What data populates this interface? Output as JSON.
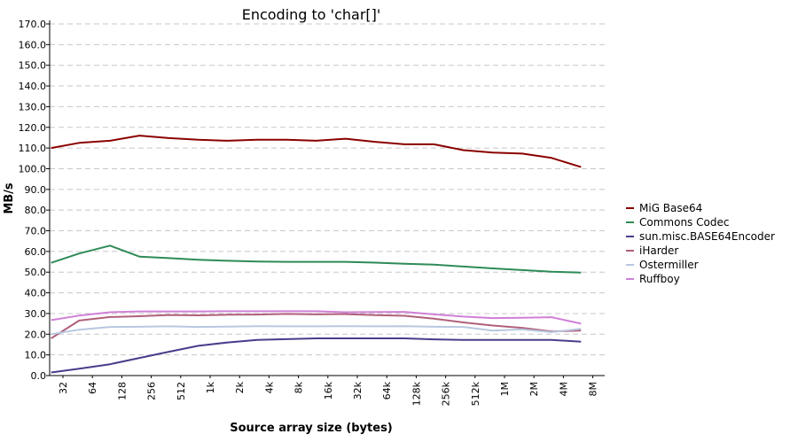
{
  "chart_data": {
    "type": "line",
    "title": "Encoding to 'char[]'",
    "xlabel": "Source array size (bytes)",
    "ylabel": "MB/s",
    "ylim": [
      0,
      170
    ],
    "y_ticks": [
      "0.0",
      "10.0",
      "20.0",
      "30.0",
      "40.0",
      "50.0",
      "60.0",
      "70.0",
      "80.0",
      "90.0",
      "100.0",
      "110.0",
      "120.0",
      "130.0",
      "140.0",
      "150.0",
      "160.0",
      "170.0"
    ],
    "grid": true,
    "legend_position": "right",
    "categories": [
      "32",
      "64",
      "128",
      "256",
      "512",
      "1k",
      "2k",
      "4k",
      "8k",
      "16k",
      "32k",
      "64k",
      "128k",
      "256k",
      "512k",
      "1M",
      "2M",
      "4M",
      "8M"
    ],
    "x_positions": [
      0,
      1,
      2,
      3,
      4,
      5,
      6,
      7,
      8,
      9,
      10,
      11,
      12,
      13,
      14,
      15,
      16,
      17,
      18
    ],
    "series": [
      {
        "name": "MiG Base64",
        "color": "#8b0000",
        "points": [
          [
            -0.4,
            110
          ],
          [
            0.55,
            112.5
          ],
          [
            1.6,
            113.5
          ],
          [
            2.6,
            116
          ],
          [
            3.6,
            114.8
          ],
          [
            4.6,
            114
          ],
          [
            5.6,
            113.5
          ],
          [
            6.6,
            114
          ],
          [
            7.6,
            114
          ],
          [
            8.6,
            113.5
          ],
          [
            9.6,
            114.5
          ],
          [
            10.6,
            113
          ],
          [
            11.6,
            111.8
          ],
          [
            12.6,
            111.8
          ],
          [
            13.6,
            109
          ],
          [
            14.6,
            107.8
          ],
          [
            15.6,
            107.3
          ],
          [
            16.6,
            105.2
          ],
          [
            17.6,
            100.8
          ]
        ]
      },
      {
        "name": "Commons Codec",
        "color": "#2e8b57",
        "points": [
          [
            -0.4,
            54.5
          ],
          [
            0.55,
            59
          ],
          [
            1.6,
            62.8
          ],
          [
            2.6,
            57.5
          ],
          [
            3.6,
            56.8
          ],
          [
            4.6,
            56
          ],
          [
            5.6,
            55.5
          ],
          [
            6.6,
            55.1
          ],
          [
            7.6,
            55
          ],
          [
            8.6,
            55
          ],
          [
            9.6,
            55
          ],
          [
            10.6,
            54.6
          ],
          [
            11.6,
            54.1
          ],
          [
            12.6,
            53.6
          ],
          [
            13.6,
            52.7
          ],
          [
            14.6,
            51.8
          ],
          [
            15.6,
            51
          ],
          [
            16.6,
            50.2
          ],
          [
            17.6,
            49.8
          ]
        ]
      },
      {
        "name": "sun.misc.BASE64Encoder",
        "color": "#483d8b",
        "points": [
          [
            -0.4,
            1.5
          ],
          [
            0.55,
            3.3
          ],
          [
            1.6,
            5.5
          ],
          [
            2.6,
            8.5
          ],
          [
            3.6,
            11.5
          ],
          [
            4.6,
            14.4
          ],
          [
            5.6,
            16
          ],
          [
            6.6,
            17.2
          ],
          [
            7.6,
            17.6
          ],
          [
            8.6,
            18
          ],
          [
            9.6,
            18
          ],
          [
            10.6,
            18
          ],
          [
            11.6,
            18
          ],
          [
            12.6,
            17.5
          ],
          [
            13.6,
            17.2
          ],
          [
            14.6,
            17.2
          ],
          [
            15.6,
            17.2
          ],
          [
            16.6,
            17.2
          ],
          [
            17.6,
            16.4
          ]
        ]
      },
      {
        "name": "iHarder",
        "color": "#b0607a",
        "points": [
          [
            -0.4,
            18
          ],
          [
            0.55,
            26.6
          ],
          [
            1.6,
            28.3
          ],
          [
            2.6,
            28.7
          ],
          [
            3.6,
            29.3
          ],
          [
            4.6,
            29.1
          ],
          [
            5.6,
            29.4
          ],
          [
            6.6,
            29.5
          ],
          [
            7.6,
            29.8
          ],
          [
            8.6,
            29.6
          ],
          [
            9.6,
            29.7
          ],
          [
            10.6,
            29.2
          ],
          [
            11.6,
            28.9
          ],
          [
            12.6,
            27.5
          ],
          [
            13.6,
            25.7
          ],
          [
            14.6,
            24.2
          ],
          [
            15.6,
            23.1
          ],
          [
            16.6,
            21.3
          ],
          [
            17.6,
            21.8
          ]
        ]
      },
      {
        "name": "Ostermiller",
        "color": "#b8c8e0",
        "points": [
          [
            -0.4,
            20
          ],
          [
            0.55,
            22.2
          ],
          [
            1.6,
            23.5
          ],
          [
            2.6,
            23.6
          ],
          [
            3.6,
            23.8
          ],
          [
            4.6,
            23.5
          ],
          [
            5.6,
            23.7
          ],
          [
            6.6,
            23.9
          ],
          [
            7.6,
            23.8
          ],
          [
            8.6,
            23.8
          ],
          [
            9.6,
            23.9
          ],
          [
            10.6,
            23.8
          ],
          [
            11.6,
            23.9
          ],
          [
            12.6,
            23.6
          ],
          [
            13.6,
            23.5
          ],
          [
            14.6,
            21.7
          ],
          [
            15.6,
            22.3
          ],
          [
            16.6,
            21
          ],
          [
            17.6,
            22.6
          ]
        ]
      },
      {
        "name": "Ruffboy",
        "color": "#d080d8",
        "points": [
          [
            -0.4,
            26.8
          ],
          [
            0.55,
            29
          ],
          [
            1.6,
            30.6
          ],
          [
            2.6,
            31
          ],
          [
            3.6,
            31
          ],
          [
            4.6,
            31
          ],
          [
            5.6,
            31.1
          ],
          [
            6.6,
            31.1
          ],
          [
            7.6,
            31.1
          ],
          [
            8.6,
            31.1
          ],
          [
            9.6,
            30.6
          ],
          [
            10.6,
            30.7
          ],
          [
            11.6,
            30.8
          ],
          [
            12.6,
            29.6
          ],
          [
            13.6,
            28.5
          ],
          [
            14.6,
            27.8
          ],
          [
            15.6,
            27.9
          ],
          [
            16.6,
            28.2
          ],
          [
            17.6,
            25.1
          ]
        ]
      }
    ]
  }
}
